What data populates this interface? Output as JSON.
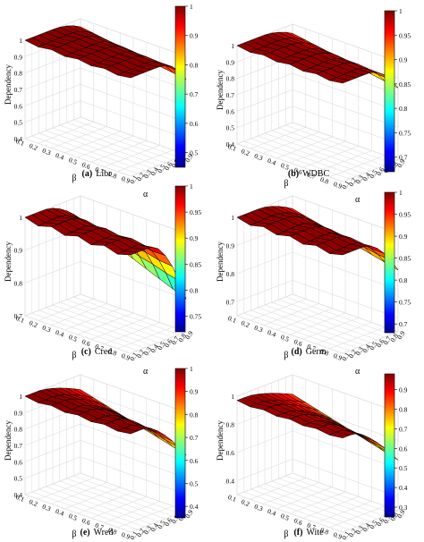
{
  "chart_data": [
    {
      "type": "surface3d",
      "caption_label": "(a)",
      "caption_name": "Libr",
      "zlabel": "Dependency",
      "xlabel": "β",
      "ylabel": "α",
      "xticks": [
        "0.1",
        "0.2",
        "0.3",
        "0.4",
        "0.5",
        "0.6",
        "0.7",
        "0.8",
        "0.9"
      ],
      "yticks": [
        "0.1",
        "0.2",
        "0.3",
        "0.4",
        "0.5",
        "0.6",
        "0.7",
        "0.8",
        "0.9"
      ],
      "zticks": [
        "0.4",
        "0.5",
        "0.6",
        "0.7",
        "0.8",
        "0.9",
        "1"
      ],
      "zlim": [
        0.4,
        1
      ],
      "colorbar_ticks": [
        "0.5",
        "0.6",
        "0.7",
        "0.8",
        "0.9",
        "1"
      ],
      "colorbar_range": [
        0.45,
        1
      ],
      "surface": {
        "z_max": 1.0,
        "z_min": 0.86,
        "alpha_drop_at": 0.5,
        "decay": 2.2
      }
    },
    {
      "type": "surface3d",
      "caption_label": "(b)",
      "caption_name": "WDBC",
      "zlabel": "Dependency",
      "xlabel": "β",
      "ylabel": "α",
      "xticks": [
        "0.1",
        "0.2",
        "0.3",
        "0.4",
        "0.5",
        "0.6",
        "0.7",
        "0.8",
        "0.9"
      ],
      "yticks": [
        "0.1",
        "0.2",
        "0.3",
        "0.4",
        "0.5",
        "0.6",
        "0.7",
        "0.8",
        "0.9"
      ],
      "zticks": [
        "0.4",
        "0.5",
        "0.6",
        "0.7",
        "0.8",
        "0.9",
        "1"
      ],
      "zlim": [
        0.4,
        1
      ],
      "colorbar_ticks": [
        "0.7",
        "0.75",
        "0.8",
        "0.85",
        "0.9",
        "0.95",
        "1"
      ],
      "colorbar_range": [
        0.67,
        1
      ],
      "surface": {
        "z_max": 1.0,
        "z_min": 0.84,
        "alpha_drop_at": 0.45,
        "decay": 2.0
      }
    },
    {
      "type": "surface3d",
      "caption_label": "(c)",
      "caption_name": "Cred",
      "zlabel": "Dependency",
      "xlabel": "β",
      "ylabel": "α",
      "xticks": [
        "0.1",
        "0.2",
        "0.3",
        "0.4",
        "0.5",
        "0.6",
        "0.7",
        "0.8",
        "0.9"
      ],
      "yticks": [
        "0.1",
        "0.2",
        "0.3",
        "0.4",
        "0.5",
        "0.6",
        "0.7",
        "0.8",
        "0.9"
      ],
      "zticks": [
        "0.7",
        "0.8",
        "0.9",
        "1"
      ],
      "zlim": [
        0.7,
        1
      ],
      "colorbar_ticks": [
        "0.75",
        "0.8",
        "0.85",
        "0.9",
        "0.95",
        "1"
      ],
      "colorbar_range": [
        0.72,
        1
      ],
      "surface": {
        "z_max": 1.0,
        "z_min": 0.8,
        "alpha_drop_at": 0.35,
        "decay": 1.8
      }
    },
    {
      "type": "surface3d",
      "caption_label": "(d)",
      "caption_name": "Germ",
      "zlabel": "Dependency",
      "xlabel": "β",
      "ylabel": "α",
      "xticks": [
        "0.1",
        "0.2",
        "0.3",
        "0.4",
        "0.5",
        "0.6",
        "0.7",
        "0.8",
        "0.9"
      ],
      "yticks": [
        "0.1",
        "0.2",
        "0.3",
        "0.4",
        "0.5",
        "0.6",
        "0.7",
        "0.8",
        "0.9"
      ],
      "zticks": [
        "0.7",
        "0.8",
        "0.9",
        "1"
      ],
      "zlim": [
        0.65,
        1
      ],
      "colorbar_ticks": [
        "0.7",
        "0.75",
        "0.8",
        "0.85",
        "0.9",
        "0.95",
        "1"
      ],
      "colorbar_range": [
        0.68,
        1
      ],
      "surface": {
        "z_max": 1.0,
        "z_min": 0.87,
        "alpha_drop_at": 0.4,
        "decay": 1.7
      }
    },
    {
      "type": "surface3d",
      "caption_label": "(e)",
      "caption_name": "Wred",
      "zlabel": "Dependency",
      "xlabel": "β",
      "ylabel": "α",
      "xticks": [
        "0.1",
        "0.2",
        "0.3",
        "0.4",
        "0.5",
        "0.6",
        "0.7",
        "0.8",
        "0.9"
      ],
      "yticks": [
        "0.1",
        "0.2",
        "0.3",
        "0.4",
        "0.5",
        "0.6",
        "0.7",
        "0.8",
        "0.9"
      ],
      "zticks": [
        "0.4",
        "0.5",
        "0.6",
        "0.7",
        "0.8",
        "0.9",
        "1"
      ],
      "zlim": [
        0.4,
        1
      ],
      "colorbar_ticks": [
        "0.4",
        "0.5",
        "0.6",
        "0.7",
        "0.8",
        "0.9",
        "1"
      ],
      "colorbar_range": [
        0.35,
        1
      ],
      "surface": {
        "z_max": 1.0,
        "z_min": 0.74,
        "alpha_drop_at": 0.25,
        "decay": 1.5
      }
    },
    {
      "type": "surface3d",
      "caption_label": "(f)",
      "caption_name": "Wite",
      "zlabel": "Dependency",
      "xlabel": "β",
      "ylabel": "α",
      "xticks": [
        "0.1",
        "0.2",
        "0.3",
        "0.4",
        "0.5",
        "0.6",
        "0.7",
        "0.8",
        "0.9"
      ],
      "yticks": [
        "0.1",
        "0.2",
        "0.3",
        "0.4",
        "0.5",
        "0.6",
        "0.7",
        "0.8",
        "0.9"
      ],
      "zticks": [
        "0.4",
        "0.6",
        "0.8",
        "1"
      ],
      "zlim": [
        0.3,
        1
      ],
      "colorbar_ticks": [
        "0.3",
        "0.4",
        "0.5",
        "0.6",
        "0.7",
        "0.8",
        "0.9"
      ],
      "colorbar_range": [
        0.25,
        0.98
      ],
      "surface": {
        "z_max": 0.97,
        "z_min": 0.66,
        "alpha_drop_at": 0.2,
        "decay": 1.4
      }
    }
  ],
  "colormap": [
    "#00008f",
    "#0000ff",
    "#007fff",
    "#00ffff",
    "#7fff7f",
    "#ffff00",
    "#ff7f00",
    "#ff0000",
    "#7f0000"
  ]
}
